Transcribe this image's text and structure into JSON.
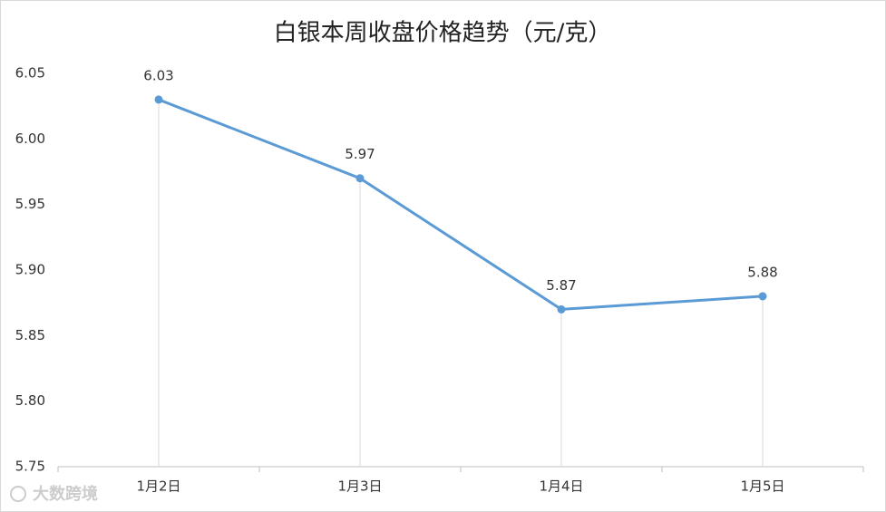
{
  "chart_data": {
    "type": "line",
    "title": "白银本周收盘价格趋势（元/克）",
    "categories": [
      "1月2日",
      "1月3日",
      "1月4日",
      "1月5日"
    ],
    "values": [
      6.03,
      5.97,
      5.87,
      5.88
    ],
    "color": "#5b9bd5",
    "ylim": [
      5.75,
      6.05
    ],
    "yticks": [
      5.75,
      {
        "value": 5.8,
        "label": "5.80"
      },
      5.85,
      {
        "value": 5.9,
        "label": "5.90"
      },
      5.95,
      {
        "value": 6.0,
        "label": "6.00"
      },
      6.05
    ],
    "grid": false,
    "drop_lines": true,
    "watermark": "大数跨境"
  }
}
